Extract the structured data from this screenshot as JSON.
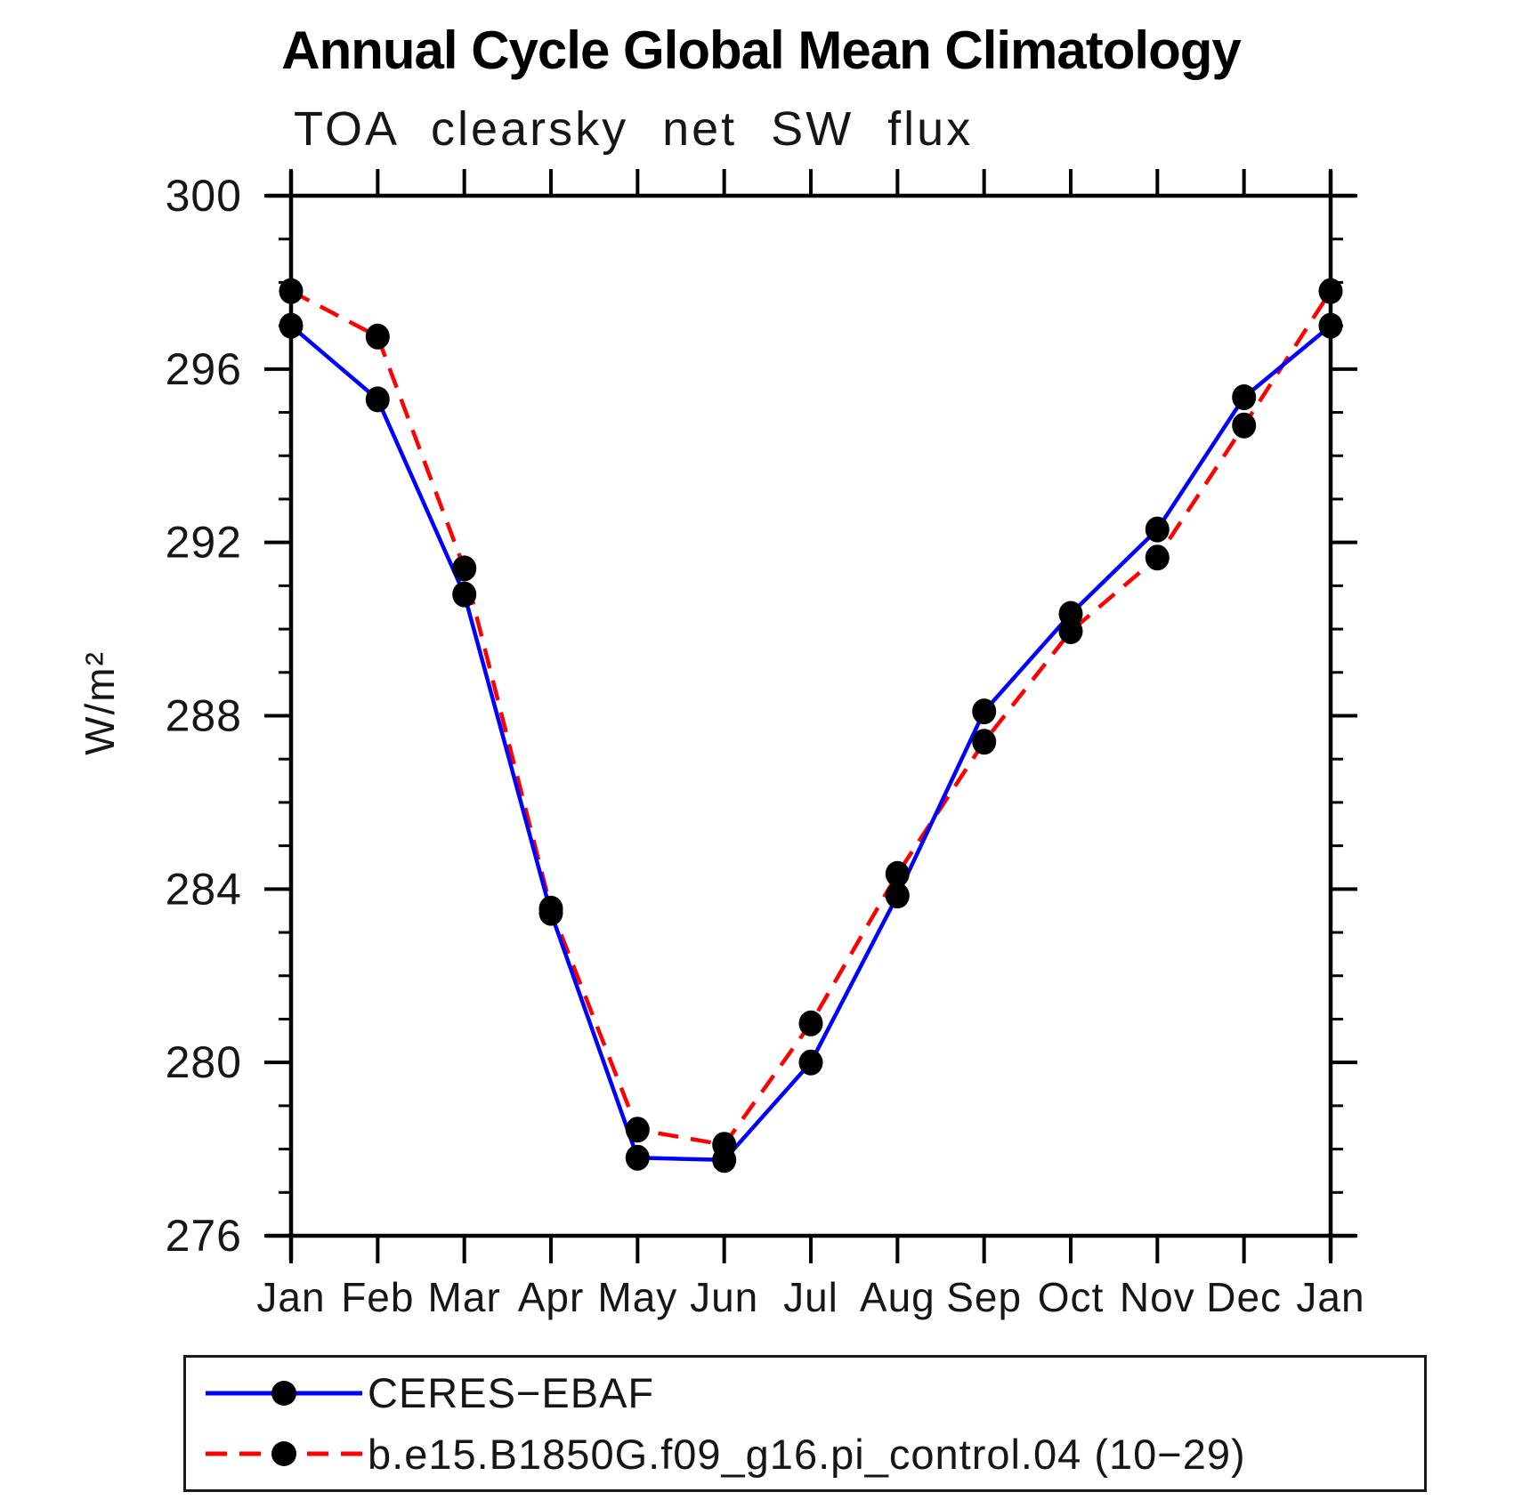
{
  "title": "Annual Cycle Global Mean Climatology",
  "chart_data": {
    "type": "line",
    "title": "Annual Cycle Global Mean Climatology",
    "subtitle": "TOA clearsky net SW flux",
    "ylabel": "W/m²",
    "xlabel": "",
    "x_tick_labels": [
      "Jan",
      "Feb",
      "Mar",
      "Apr",
      "May",
      "Jun",
      "Jul",
      "Aug",
      "Sep",
      "Oct",
      "Nov",
      "Dec",
      "Jan"
    ],
    "y_ticks": [
      276,
      280,
      284,
      288,
      292,
      296,
      300
    ],
    "y_minor_step": 1,
    "ylim": [
      276,
      300
    ],
    "grid": "off",
    "legend_position": "bottom",
    "axis_color": "#000000",
    "marker_color": "#000000",
    "series": [
      {
        "name": "CERES−EBAF",
        "color": "#0000ff",
        "style": "solid",
        "marker": "circle",
        "values": [
          297.0,
          295.3,
          290.8,
          283.45,
          277.8,
          277.75,
          280.0,
          283.85,
          288.1,
          290.35,
          292.3,
          295.35,
          297.0
        ]
      },
      {
        "name": "b.e15.B1850G.f09_g16.pi_control.04 (10−29)",
        "color": "#ff0000",
        "style": "dashed",
        "marker": "circle",
        "values": [
          297.8,
          296.75,
          291.4,
          283.55,
          278.45,
          278.1,
          280.9,
          284.35,
          287.4,
          289.95,
          291.65,
          294.7,
          297.8
        ]
      }
    ]
  }
}
